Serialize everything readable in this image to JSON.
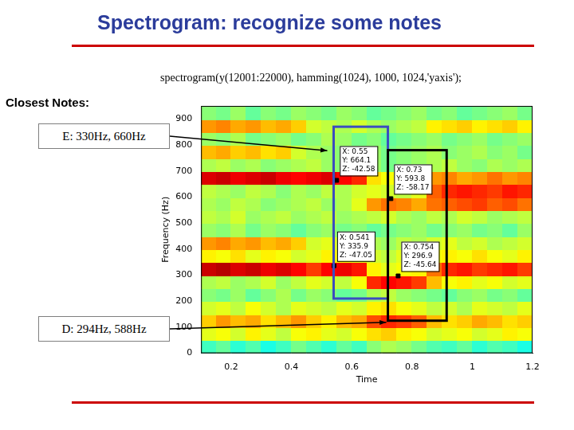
{
  "title": "Spectrogram: recognize some notes",
  "command": "spectrogram(y(12001:22000), hamming(1024), 1000, 1024,'yaxis');",
  "notes_heading": "Closest Notes:",
  "notes": [
    "E: 330Hz, 660Hz",
    "D: 294Hz, 588Hz"
  ],
  "chart_data": {
    "type": "heatmap",
    "xlabel": "Time",
    "ylabel": "Frequency (Hz)",
    "xlim": [
      0.1,
      1.2
    ],
    "xticks": [
      0.2,
      0.4,
      0.6,
      0.8,
      1,
      1.2
    ],
    "ylim": [
      0,
      950
    ],
    "yticks": [
      0,
      100,
      200,
      300,
      400,
      500,
      600,
      700,
      800,
      900
    ],
    "grid": false,
    "color_range": [
      -90,
      -35
    ],
    "cells": {
      "x_edges": [
        0.1,
        0.15,
        0.2,
        0.25,
        0.3,
        0.35,
        0.4,
        0.45,
        0.5,
        0.55,
        0.6,
        0.65,
        0.7,
        0.75,
        0.8,
        0.85,
        0.9,
        0.95,
        1,
        1.05,
        1.1,
        1.15,
        1.2
      ],
      "y_edges": [
        0,
        50,
        100,
        150,
        200,
        250,
        300,
        350,
        400,
        450,
        500,
        550,
        600,
        650,
        700,
        750,
        800,
        850,
        900,
        950
      ],
      "z": [
        [
          -66,
          -64,
          -67,
          -65,
          -68,
          -66,
          -63,
          -65,
          -67,
          -64,
          -66,
          -62,
          -60,
          -61,
          -63,
          -65,
          -66,
          -64,
          -67,
          -65,
          -66,
          -68
        ],
        [
          -57,
          -56,
          -58,
          -55,
          -57,
          -59,
          -56,
          -55,
          -57,
          -58,
          -56,
          -54,
          -53,
          -55,
          -56,
          -58,
          -57,
          -56,
          -58,
          -57,
          -55,
          -56
        ],
        [
          -53,
          -50,
          -52,
          -51,
          -54,
          -52,
          -50,
          -53,
          -55,
          -52,
          -51,
          -46,
          -44,
          -45,
          -47,
          -52,
          -54,
          -53,
          -51,
          -52,
          -54,
          -53
        ],
        [
          -58,
          -57,
          -59,
          -56,
          -58,
          -60,
          -57,
          -58,
          -59,
          -57,
          -58,
          -55,
          -54,
          -56,
          -57,
          -59,
          -58,
          -60,
          -57,
          -58,
          -59,
          -57
        ],
        [
          -62,
          -63,
          -61,
          -64,
          -62,
          -60,
          -63,
          -61,
          -62,
          -64,
          -63,
          -60,
          -59,
          -61,
          -62,
          -63,
          -64,
          -62,
          -61,
          -63,
          -62,
          -64
        ],
        [
          -60,
          -59,
          -61,
          -60,
          -58,
          -61,
          -59,
          -57,
          -58,
          -59,
          -56,
          -44,
          -42,
          -43,
          -45,
          -52,
          -56,
          -55,
          -57,
          -56,
          -58,
          -57
        ],
        [
          -39,
          -38,
          -40,
          -39,
          -41,
          -40,
          -42,
          -45,
          -42,
          -41,
          -43,
          -55,
          -57,
          -56,
          -55,
          -48,
          -44,
          -43,
          -45,
          -44,
          -43,
          -45
        ],
        [
          -55,
          -56,
          -54,
          -57,
          -55,
          -56,
          -58,
          -57,
          -55,
          -56,
          -57,
          -58,
          -59,
          -57,
          -58,
          -56,
          -55,
          -56,
          -54,
          -56,
          -57,
          -55
        ],
        [
          -50,
          -49,
          -51,
          -50,
          -52,
          -51,
          -53,
          -58,
          -57,
          -59,
          -58,
          -60,
          -61,
          -59,
          -60,
          -58,
          -57,
          -59,
          -58,
          -60,
          -59,
          -58
        ],
        [
          -61,
          -62,
          -60,
          -63,
          -61,
          -62,
          -64,
          -62,
          -61,
          -63,
          -62,
          -64,
          -63,
          -62,
          -61,
          -63,
          -62,
          -61,
          -63,
          -62,
          -64,
          -61
        ],
        [
          -59,
          -60,
          -58,
          -61,
          -60,
          -59,
          -61,
          -60,
          -59,
          -61,
          -60,
          -59,
          -58,
          -60,
          -61,
          -59,
          -60,
          -58,
          -59,
          -61,
          -60,
          -59
        ],
        [
          -60,
          -61,
          -59,
          -60,
          -62,
          -61,
          -60,
          -59,
          -61,
          -60,
          -57,
          -50,
          -48,
          -49,
          -51,
          -48,
          -47,
          -46,
          -45,
          -47,
          -46,
          -48
        ],
        [
          -59,
          -60,
          -61,
          -59,
          -60,
          -62,
          -60,
          -61,
          -59,
          -60,
          -58,
          -57,
          -58,
          -59,
          -57,
          -47,
          -44,
          -43,
          -44,
          -45,
          -43,
          -44
        ],
        [
          -40,
          -39,
          -41,
          -40,
          -39,
          -41,
          -42,
          -41,
          -40,
          -42,
          -44,
          -54,
          -56,
          -55,
          -54,
          -50,
          -49,
          -51,
          -50,
          -48,
          -50,
          -49
        ],
        [
          -60,
          -59,
          -61,
          -60,
          -62,
          -61,
          -60,
          -59,
          -61,
          -62,
          -60,
          -61,
          -63,
          -62,
          -61,
          -60,
          -59,
          -61,
          -62,
          -60,
          -61,
          -60
        ],
        [
          -52,
          -51,
          -53,
          -52,
          -54,
          -53,
          -58,
          -60,
          -61,
          -62,
          -60,
          -61,
          -63,
          -62,
          -61,
          -60,
          -62,
          -61,
          -60,
          -62,
          -61,
          -63
        ],
        [
          -61,
          -62,
          -60,
          -63,
          -62,
          -61,
          -63,
          -62,
          -60,
          -61,
          -63,
          -62,
          -64,
          -63,
          -62,
          -61,
          -63,
          -62,
          -61,
          -63,
          -62,
          -61
        ],
        [
          -50,
          -49,
          -51,
          -50,
          -52,
          -51,
          -53,
          -58,
          -59,
          -60,
          -58,
          -60,
          -61,
          -60,
          -59,
          -55,
          -54,
          -53,
          -55,
          -54,
          -53,
          -55
        ],
        [
          -62,
          -63,
          -61,
          -64,
          -62,
          -63,
          -61,
          -62,
          -63,
          -61,
          -62,
          -64,
          -63,
          -62,
          -61,
          -63,
          -62,
          -64,
          -63,
          -62,
          -61,
          -63
        ]
      ]
    },
    "tip_prefixes": [
      "X: ",
      "Y: ",
      "Z: "
    ],
    "data_tips": [
      {
        "x": 0.55,
        "y": 664.1,
        "z": -42.58
      },
      {
        "x": 0.541,
        "y": 335.9,
        "z": -47.05
      },
      {
        "x": 0.73,
        "y": 593.8,
        "z": -58.17
      },
      {
        "x": 0.754,
        "y": 296.9,
        "z": -45.64
      }
    ],
    "boxes": [
      {
        "x": [
          0.54,
          0.72
        ],
        "y": [
          210,
          870
        ],
        "color": "#3b4cc0"
      },
      {
        "x": [
          0.72,
          0.915
        ],
        "y": [
          125,
          780
        ],
        "color": "#000000"
      }
    ]
  }
}
